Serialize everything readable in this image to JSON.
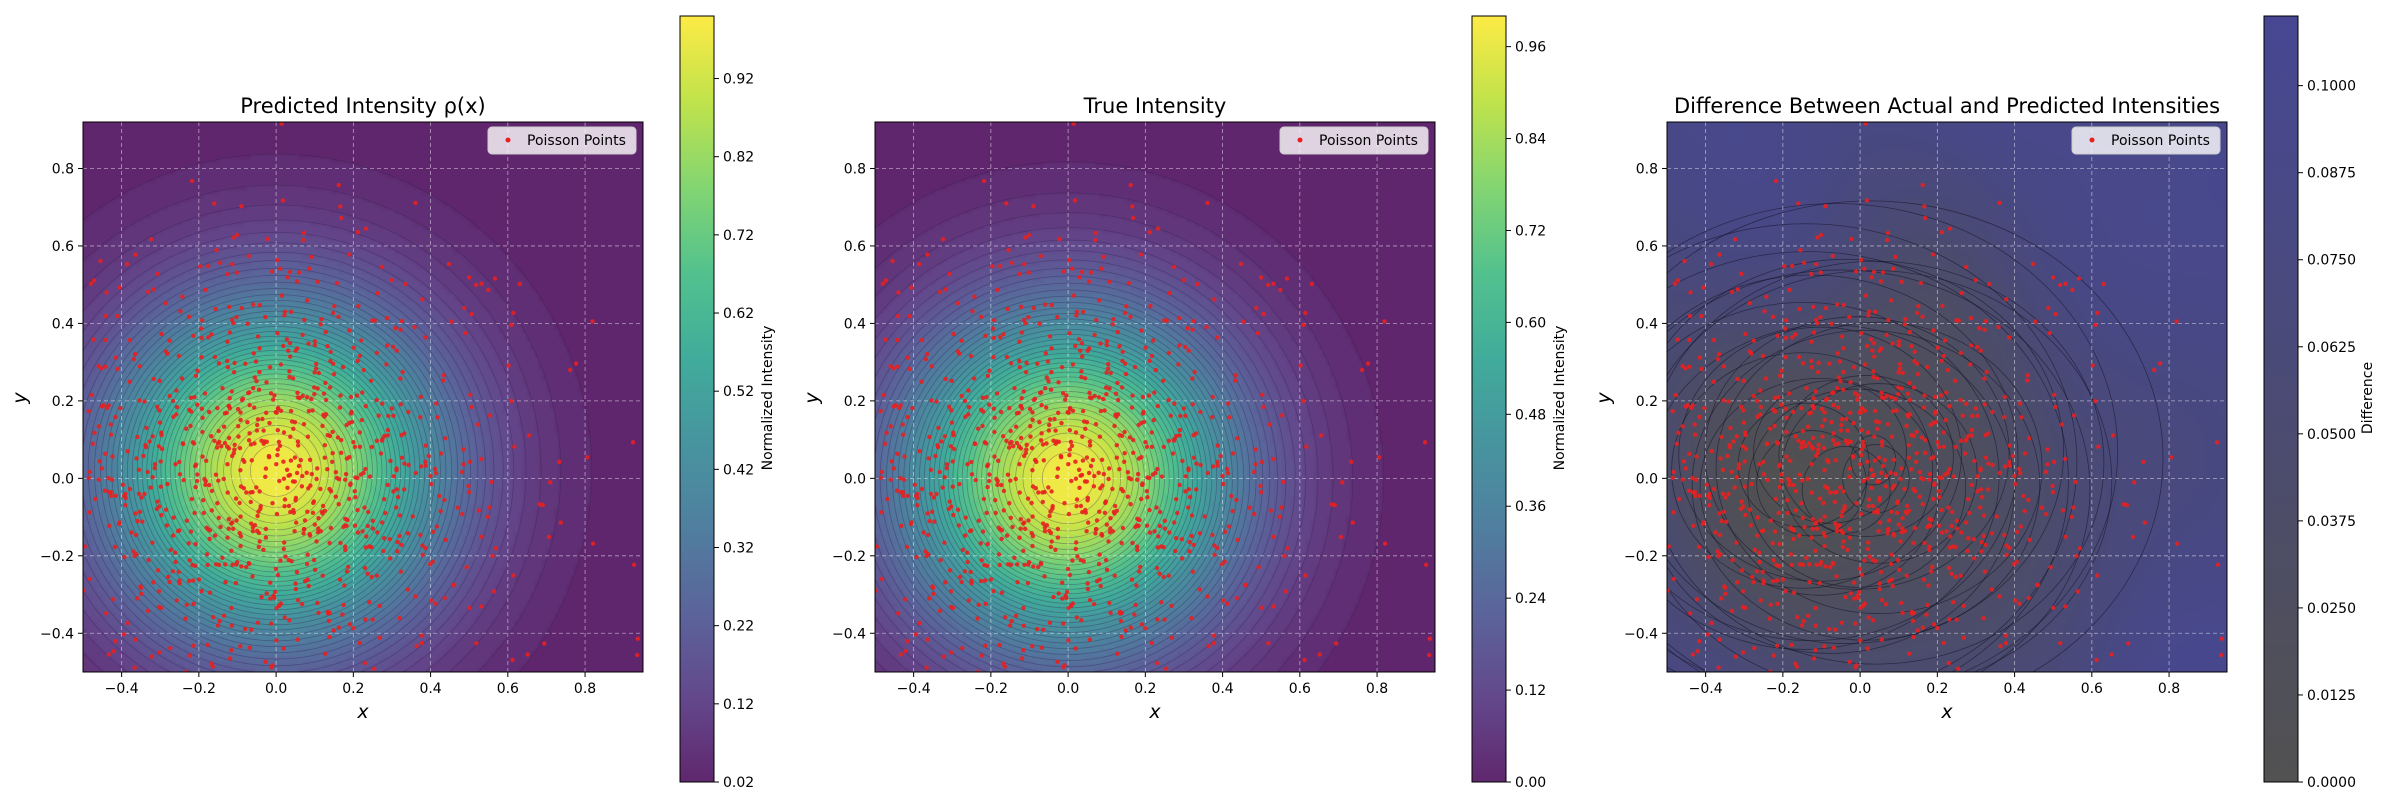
{
  "chart_data": [
    {
      "type": "heatmap",
      "title": "Predicted Intensity ρ(x)",
      "xlabel": "x",
      "ylabel": "y",
      "xlim": [
        -0.5,
        0.95
      ],
      "ylim": [
        -0.5,
        0.92
      ],
      "xticks": [
        "−0.4",
        "−0.2",
        "0.0",
        "0.2",
        "0.4",
        "0.6",
        "0.8"
      ],
      "yticks": [
        "−0.4",
        "−0.2",
        "0.0",
        "0.2",
        "0.4",
        "0.6",
        "0.8"
      ],
      "grid": true,
      "legend": {
        "label": "Poisson Points",
        "position": "top-right"
      },
      "colormap": "viridis",
      "colorbar": {
        "label": "Normalized Intensity",
        "range": [
          0.02,
          1.0
        ],
        "ticks": [
          "0.02",
          "0.12",
          "0.22",
          "0.32",
          "0.42",
          "0.52",
          "0.62",
          "0.72",
          "0.82",
          "0.92"
        ]
      },
      "field": {
        "kind": "gaussian",
        "center": [
          0.0,
          0.02
        ],
        "sigma": 0.3,
        "min": 0.02,
        "max": 1.0
      }
    },
    {
      "type": "heatmap",
      "title": "True Intensity",
      "xlabel": "x",
      "ylabel": "y",
      "xlim": [
        -0.5,
        0.95
      ],
      "ylim": [
        -0.5,
        0.92
      ],
      "xticks": [
        "−0.4",
        "−0.2",
        "0.0",
        "0.2",
        "0.4",
        "0.6",
        "0.8"
      ],
      "yticks": [
        "−0.4",
        "−0.2",
        "0.0",
        "0.2",
        "0.4",
        "0.6",
        "0.8"
      ],
      "grid": true,
      "legend": {
        "label": "Poisson Points",
        "position": "top-right"
      },
      "colormap": "viridis",
      "colorbar": {
        "label": "Normalized Intensity",
        "range": [
          0.0,
          1.0
        ],
        "ticks": [
          "0.00",
          "0.12",
          "0.24",
          "0.36",
          "0.48",
          "0.60",
          "0.72",
          "0.84",
          "0.96"
        ]
      },
      "field": {
        "kind": "gaussian",
        "center": [
          0.0,
          0.0
        ],
        "sigma": 0.3,
        "min": 0.0,
        "max": 1.0
      }
    },
    {
      "type": "heatmap",
      "title": "Difference Between Actual and Predicted Intensities",
      "xlabel": "x",
      "ylabel": "y",
      "xlim": [
        -0.5,
        0.95
      ],
      "ylim": [
        -0.5,
        0.92
      ],
      "xticks": [
        "−0.4",
        "−0.2",
        "0.0",
        "0.2",
        "0.4",
        "0.6",
        "0.8"
      ],
      "yticks": [
        "−0.4",
        "−0.2",
        "0.0",
        "0.2",
        "0.4",
        "0.6",
        "0.8"
      ],
      "grid": true,
      "legend": {
        "label": "Poisson Points",
        "position": "top-right"
      },
      "colormap": "dark-gray-to-navy",
      "colorbar": {
        "label": "Difference",
        "range": [
          0.0,
          0.11
        ],
        "ticks": [
          "0.0000",
          "0.0125",
          "0.0250",
          "0.0375",
          "0.0500",
          "0.0625",
          "0.0750",
          "0.0875",
          "0.1000"
        ]
      },
      "field": {
        "kind": "difference",
        "min": 0.0,
        "max": 0.11
      }
    }
  ],
  "points": {
    "count": 900,
    "center": [
      0.0,
      0.0
    ],
    "sigma": 0.3,
    "color": "#e82020",
    "seed": 7
  },
  "colors": {
    "viridis": [
      "#440154",
      "#482878",
      "#3e4989",
      "#31688e",
      "#26828e",
      "#1f9e89",
      "#35b779",
      "#6ece58",
      "#b5de2b",
      "#fde725"
    ],
    "difference": [
      "#333333",
      "#2f2f45",
      "#2b2b5c",
      "#292970",
      "#262680"
    ]
  }
}
